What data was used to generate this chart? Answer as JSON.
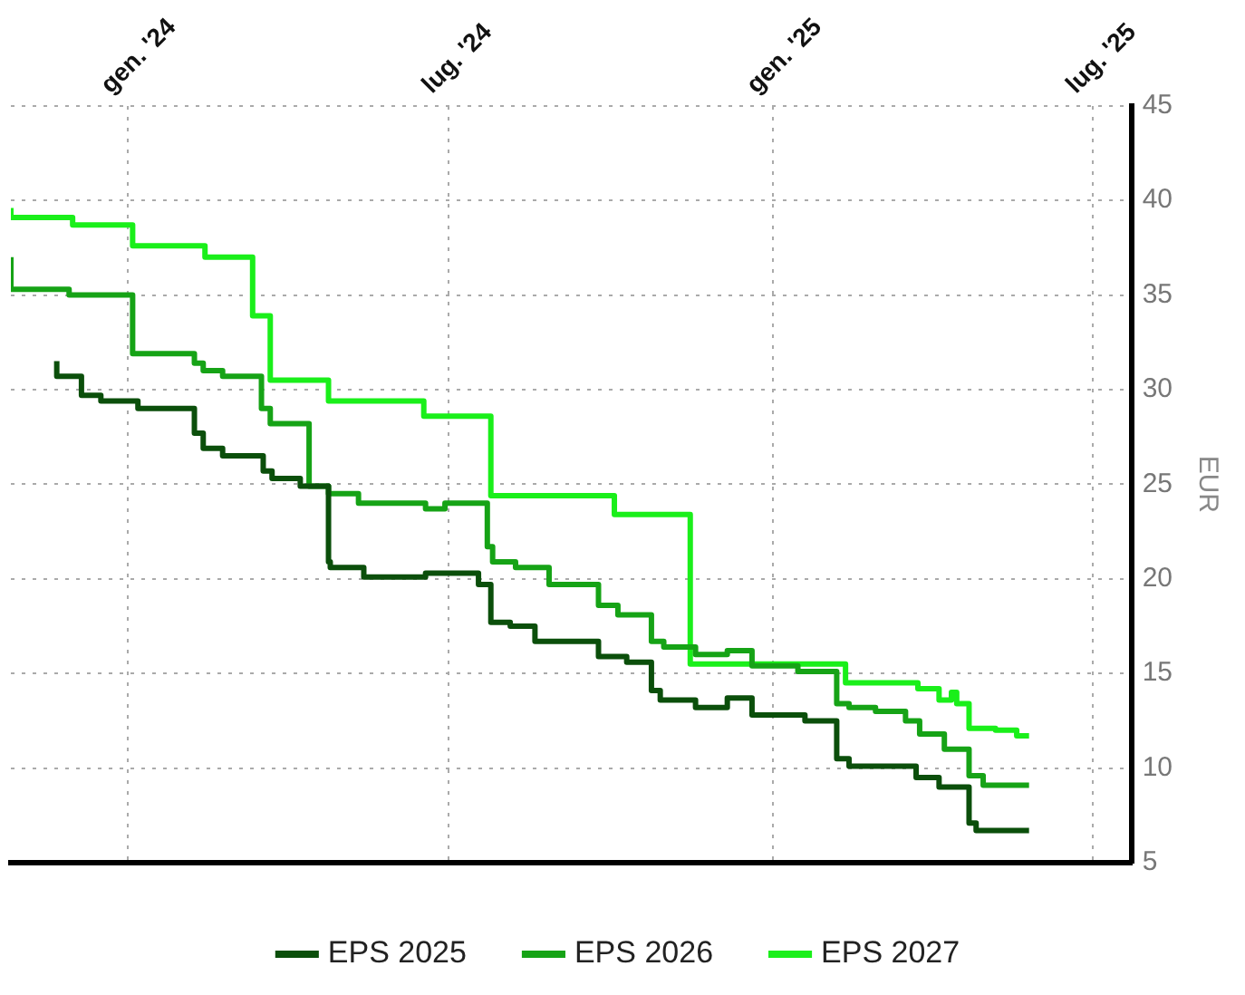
{
  "chart_data": {
    "type": "step",
    "ylabel": "EUR",
    "xlim": [
      "2023-10-27",
      "2025-07-23"
    ],
    "xticks": [
      {
        "value": "2024-01-01",
        "label": "gen. '24"
      },
      {
        "value": "2024-07-01",
        "label": "lug. '24"
      },
      {
        "value": "2025-01-01",
        "label": "gen. '25"
      },
      {
        "value": "2025-07-01",
        "label": "lug. '25"
      }
    ],
    "ylim": [
      5,
      45
    ],
    "yticks": [
      5,
      10,
      15,
      20,
      25,
      30,
      35,
      40,
      45
    ],
    "grid": true,
    "legend": "bottom",
    "line_style": "solid",
    "marker": "none",
    "series": [
      {
        "name": "EPS 2025",
        "color": "#0b4f0b",
        "x": [
          "2023-11-22",
          "2023-12-06",
          "2023-12-17",
          "2024-01-07",
          "2024-02-08",
          "2024-02-13",
          "2024-02-24",
          "2024-03-18",
          "2024-03-23",
          "2024-04-08",
          "2024-04-24",
          "2024-04-25",
          "2024-05-14",
          "2024-06-18",
          "2024-07-18",
          "2024-07-25",
          "2024-08-05",
          "2024-08-19",
          "2024-09-24",
          "2024-10-10",
          "2024-10-24",
          "2024-10-29",
          "2024-11-18",
          "2024-12-06",
          "2024-12-20",
          "2025-01-19",
          "2025-02-06",
          "2025-02-13",
          "2025-03-23",
          "2025-04-05",
          "2025-04-22",
          "2025-04-26",
          "2025-05-26"
        ],
        "values": [
          31.5,
          30.7,
          29.7,
          29.4,
          29.0,
          27.7,
          26.9,
          26.5,
          25.7,
          25.3,
          24.9,
          20.9,
          20.6,
          20.1,
          20.3,
          19.7,
          17.7,
          17.5,
          16.7,
          15.9,
          15.6,
          14.1,
          13.6,
          13.2,
          13.7,
          12.8,
          12.5,
          10.5,
          10.1,
          9.5,
          9.0,
          7.1,
          6.7
        ]
      },
      {
        "name": "EPS 2026",
        "color": "#16a316",
        "x": [
          "2023-10-27",
          "2023-11-29",
          "2024-01-04",
          "2024-02-08",
          "2024-02-13",
          "2024-02-24",
          "2024-03-17",
          "2024-03-22",
          "2024-04-13",
          "2024-04-24",
          "2024-05-11",
          "2024-06-18",
          "2024-06-29",
          "2024-07-23",
          "2024-07-26",
          "2024-08-08",
          "2024-08-27",
          "2024-09-24",
          "2024-10-05",
          "2024-10-24",
          "2024-10-31",
          "2024-11-18",
          "2024-12-06",
          "2024-12-20",
          "2025-01-15",
          "2025-02-06",
          "2025-02-13",
          "2025-02-28",
          "2025-03-17",
          "2025-03-25",
          "2025-04-08",
          "2025-04-22",
          "2025-04-30",
          "2025-05-26"
        ],
        "values": [
          37.0,
          35.3,
          35.0,
          31.9,
          31.4,
          31.0,
          30.7,
          29.0,
          28.2,
          24.9,
          24.5,
          24.0,
          23.7,
          24.0,
          21.7,
          20.9,
          20.6,
          19.7,
          18.6,
          18.1,
          16.7,
          16.4,
          16.0,
          16.2,
          15.4,
          15.1,
          13.4,
          13.2,
          13.0,
          12.5,
          11.8,
          11.0,
          9.6,
          9.1
        ]
      },
      {
        "name": "EPS 2027",
        "color": "#1aef1a",
        "x": [
          "2023-10-27",
          "2023-12-01",
          "2024-01-04",
          "2024-02-14",
          "2024-03-12",
          "2024-03-22",
          "2024-04-24",
          "2024-06-17",
          "2024-07-25",
          "2024-10-03",
          "2024-11-15",
          "2025-02-11",
          "2025-03-24",
          "2025-04-05",
          "2025-04-12",
          "2025-04-15",
          "2025-04-22",
          "2025-05-07",
          "2025-05-19",
          "2025-05-26"
        ],
        "values": [
          39.6,
          39.1,
          38.7,
          37.6,
          37.0,
          33.9,
          30.5,
          29.4,
          28.6,
          24.4,
          23.4,
          15.5,
          14.5,
          14.2,
          13.6,
          14.0,
          13.4,
          12.1,
          12.0,
          11.7
        ]
      }
    ]
  }
}
